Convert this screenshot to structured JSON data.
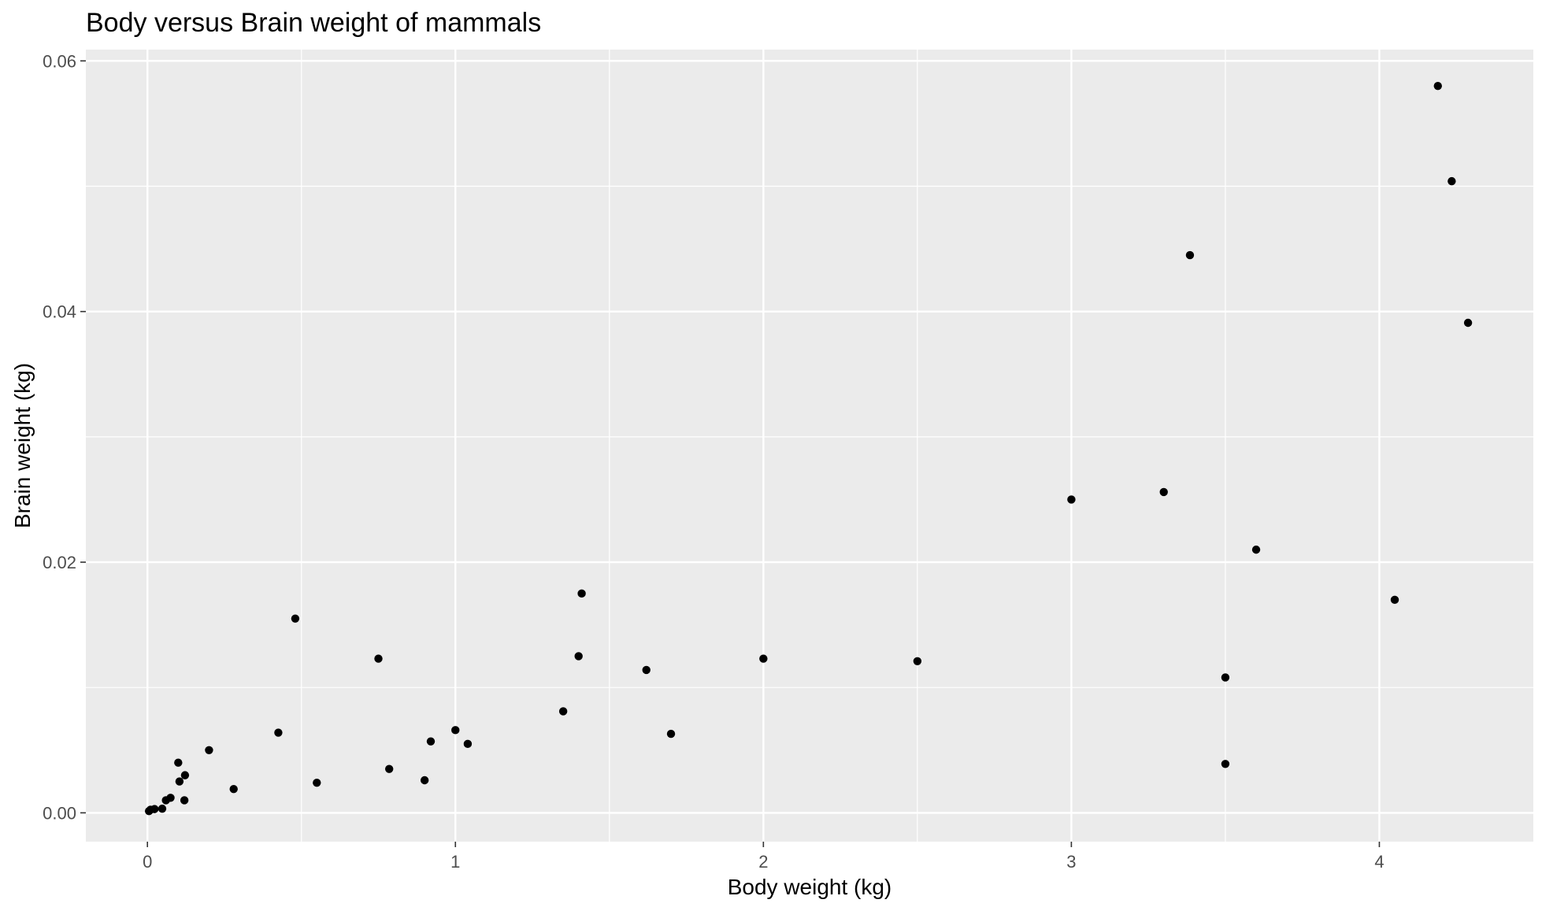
{
  "chart_data": {
    "type": "scatter",
    "title": "Body versus Brain weight of mammals",
    "xlabel": "Body weight (kg)",
    "ylabel": "Brain weight (kg)",
    "xlim": [
      -0.2,
      4.5
    ],
    "ylim": [
      -0.0023,
      0.0609
    ],
    "x_ticks": [
      0,
      1,
      2,
      3,
      4
    ],
    "x_tick_labels": [
      "0",
      "1",
      "2",
      "3",
      "4"
    ],
    "y_ticks": [
      0.0,
      0.02,
      0.04,
      0.06
    ],
    "y_tick_labels": [
      "0.00",
      "0.02",
      "0.04",
      "0.06"
    ],
    "grid": true,
    "panel_background": "#ebebeb",
    "grid_color": "#ffffff",
    "point_color": "#000000",
    "points": [
      {
        "x": 0.005,
        "y": 0.00014
      },
      {
        "x": 0.01,
        "y": 0.00025
      },
      {
        "x": 0.023,
        "y": 0.0003
      },
      {
        "x": 0.048,
        "y": 0.00033
      },
      {
        "x": 0.06,
        "y": 0.001
      },
      {
        "x": 0.075,
        "y": 0.0012
      },
      {
        "x": 0.1,
        "y": 0.004
      },
      {
        "x": 0.104,
        "y": 0.0025
      },
      {
        "x": 0.12,
        "y": 0.001
      },
      {
        "x": 0.122,
        "y": 0.003
      },
      {
        "x": 0.2,
        "y": 0.005
      },
      {
        "x": 0.28,
        "y": 0.0019
      },
      {
        "x": 0.425,
        "y": 0.0064
      },
      {
        "x": 0.48,
        "y": 0.0155
      },
      {
        "x": 0.55,
        "y": 0.0024
      },
      {
        "x": 0.75,
        "y": 0.0123
      },
      {
        "x": 0.785,
        "y": 0.0035
      },
      {
        "x": 0.9,
        "y": 0.0026
      },
      {
        "x": 0.92,
        "y": 0.0057
      },
      {
        "x": 1.0,
        "y": 0.0066
      },
      {
        "x": 1.04,
        "y": 0.0055
      },
      {
        "x": 1.35,
        "y": 0.0081
      },
      {
        "x": 1.4,
        "y": 0.0125
      },
      {
        "x": 1.41,
        "y": 0.0175
      },
      {
        "x": 1.62,
        "y": 0.0114
      },
      {
        "x": 1.7,
        "y": 0.0063
      },
      {
        "x": 2.0,
        "y": 0.0123
      },
      {
        "x": 2.5,
        "y": 0.0121
      },
      {
        "x": 3.0,
        "y": 0.025
      },
      {
        "x": 3.3,
        "y": 0.0256
      },
      {
        "x": 3.385,
        "y": 0.0445
      },
      {
        "x": 3.5,
        "y": 0.0039
      },
      {
        "x": 3.5,
        "y": 0.0108
      },
      {
        "x": 3.6,
        "y": 0.021
      },
      {
        "x": 4.05,
        "y": 0.017
      },
      {
        "x": 4.19,
        "y": 0.058
      },
      {
        "x": 4.235,
        "y": 0.0504
      },
      {
        "x": 4.288,
        "y": 0.0391
      }
    ]
  }
}
